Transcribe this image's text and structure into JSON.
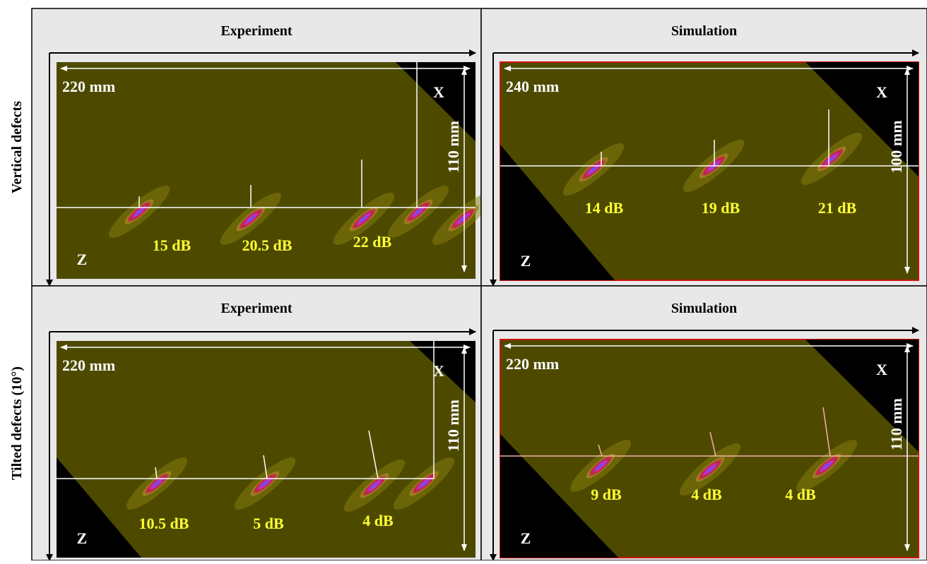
{
  "rows": [
    {
      "label": "Vertical defects",
      "panels": [
        {
          "title": "Experiment",
          "width_label": "220 mm",
          "height_label": "110 mm",
          "x_label": "X",
          "z_label": "Z",
          "signals": [
            "15 dB",
            "20.5  dB",
            "22  dB"
          ]
        },
        {
          "title": "Simulation",
          "width_label": "240 mm",
          "height_label": "100 mm",
          "x_label": "X",
          "z_label": "Z",
          "signals": [
            "14 dB",
            "19 dB",
            "21 dB"
          ]
        }
      ]
    },
    {
      "label": "Tilted defects (10°)",
      "panels": [
        {
          "title": "Experiment",
          "width_label": "220 mm",
          "height_label": "110 mm",
          "x_label": "X",
          "z_label": "Z",
          "signals": [
            "10.5 dB",
            "5 dB",
            "4 dB"
          ]
        },
        {
          "title": "Simulation",
          "width_label": "220 mm",
          "height_label": "110 mm",
          "x_label": "X",
          "z_label": "Z",
          "signals": [
            "9 dB",
            "4  dB",
            "4 dB"
          ]
        }
      ]
    }
  ]
}
